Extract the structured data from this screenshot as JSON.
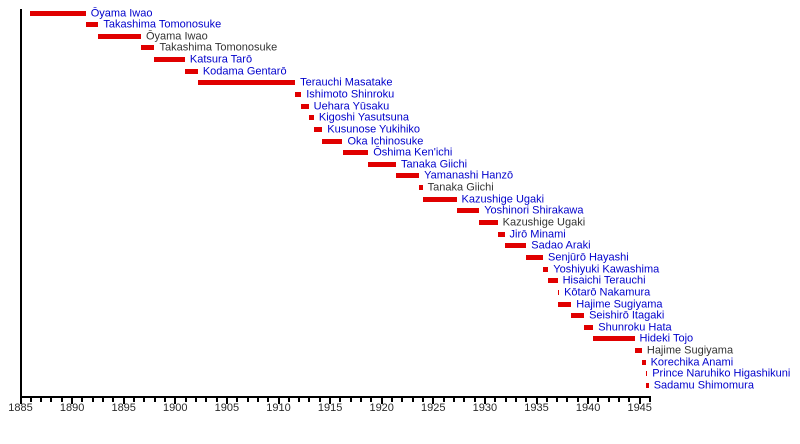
{
  "chart_data": {
    "type": "timeline",
    "description": "Timeline of Japanese Army Ministers, terms of office shown as red bars",
    "x_axis": {
      "min_year": 1885,
      "max_year": 1946,
      "minor_tick_every": 1,
      "major_tick_every": 5,
      "tick_labels": [
        "1885",
        "1890",
        "1895",
        "1900",
        "1905",
        "1910",
        "1915",
        "1920",
        "1925",
        "1930",
        "1935",
        "1940",
        "1945"
      ]
    },
    "colors": {
      "bar": "#e00000",
      "link_label": "#0000cc",
      "plain_label": "#333333",
      "axis": "#000000",
      "background": "#ffffff"
    },
    "legend_position": "none",
    "grid": false,
    "entries": [
      {
        "name": "Ōyama Iwao",
        "start": 1885.97,
        "end": 1891.37,
        "link": true
      },
      {
        "name": "Takashima Tomonosuke",
        "start": 1891.37,
        "end": 1892.6,
        "link": true
      },
      {
        "name": "Ōyama Iwao",
        "start": 1892.6,
        "end": 1896.72,
        "link": false
      },
      {
        "name": "Takashima Tomonosuke",
        "start": 1896.72,
        "end": 1898.03,
        "link": false
      },
      {
        "name": "Katsura Tarō",
        "start": 1898.03,
        "end": 1900.98,
        "link": true
      },
      {
        "name": "Kodama Gentarō",
        "start": 1900.98,
        "end": 1902.23,
        "link": true
      },
      {
        "name": "Terauchi Masatake",
        "start": 1902.23,
        "end": 1911.66,
        "link": true
      },
      {
        "name": "Ishimoto Shinroku",
        "start": 1911.66,
        "end": 1912.25,
        "link": true
      },
      {
        "name": "Uehara Yūsaku",
        "start": 1912.26,
        "end": 1912.97,
        "link": true
      },
      {
        "name": "Kigoshi Yasutsuna",
        "start": 1912.97,
        "end": 1913.48,
        "link": true
      },
      {
        "name": "Kusunose Yukihiko",
        "start": 1913.48,
        "end": 1914.29,
        "link": true
      },
      {
        "name": "Oka Ichinosuke",
        "start": 1914.29,
        "end": 1916.25,
        "link": true
      },
      {
        "name": "Ōshima Ken'ichi",
        "start": 1916.25,
        "end": 1918.74,
        "link": true
      },
      {
        "name": "Tanaka Giichi",
        "start": 1918.74,
        "end": 1921.44,
        "link": true
      },
      {
        "name": "Yamanashi Hanzō",
        "start": 1921.44,
        "end": 1923.67,
        "link": true
      },
      {
        "name": "Tanaka Giichi",
        "start": 1923.67,
        "end": 1924.02,
        "link": false
      },
      {
        "name": "Kazushige Ugaki",
        "start": 1924.02,
        "end": 1927.3,
        "link": true
      },
      {
        "name": "Yoshinori Shirakawa",
        "start": 1927.3,
        "end": 1929.5,
        "link": true
      },
      {
        "name": "Kazushige Ugaki",
        "start": 1929.5,
        "end": 1931.28,
        "link": false
      },
      {
        "name": "Jirō Minami",
        "start": 1931.28,
        "end": 1931.95,
        "link": true
      },
      {
        "name": "Sadao Araki",
        "start": 1931.95,
        "end": 1934.06,
        "link": true
      },
      {
        "name": "Senjūrō Hayashi",
        "start": 1934.06,
        "end": 1935.68,
        "link": true
      },
      {
        "name": "Yoshiyuki Kawashima",
        "start": 1935.68,
        "end": 1936.19,
        "link": true
      },
      {
        "name": "Hisaichi Terauchi",
        "start": 1936.19,
        "end": 1937.09,
        "link": true
      },
      {
        "name": "Kōtarō Nakamura",
        "start": 1937.09,
        "end": 1937.13,
        "link": true
      },
      {
        "name": "Hajime Sugiyama",
        "start": 1937.13,
        "end": 1938.42,
        "link": true
      },
      {
        "name": "Seishirō Itagaki",
        "start": 1938.42,
        "end": 1939.66,
        "link": true
      },
      {
        "name": "Shunroku Hata",
        "start": 1939.66,
        "end": 1940.55,
        "link": true
      },
      {
        "name": "Hideki Tojo",
        "start": 1940.55,
        "end": 1944.55,
        "link": true
      },
      {
        "name": "Hajime Sugiyama",
        "start": 1944.55,
        "end": 1945.26,
        "link": false
      },
      {
        "name": "Korechika Anami",
        "start": 1945.26,
        "end": 1945.62,
        "link": true
      },
      {
        "name": "Prince Naruhiko Higashikuni",
        "start": 1945.63,
        "end": 1945.67,
        "link": true
      },
      {
        "name": "Sadamu Shimomura",
        "start": 1945.67,
        "end": 1945.92,
        "link": true
      }
    ]
  }
}
